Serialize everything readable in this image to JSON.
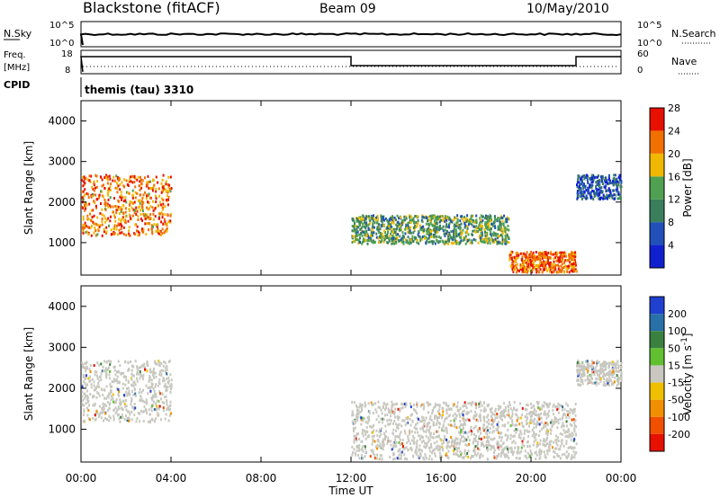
{
  "header": {
    "title": "Blackstone (fitACF)",
    "beam": "Beam 09",
    "date": "10/May/2010"
  },
  "nsky_panel": {
    "label": "N.Sky",
    "right_label": "N.Search",
    "left_ticks": [
      "10^5",
      "10^0"
    ],
    "right_ticks": [
      "10^5",
      "10^0"
    ]
  },
  "freq_panel": {
    "label_line1": "Freq.",
    "label_line2": "[MHz]",
    "left_ticks": [
      "18",
      "8"
    ],
    "right_ticks": [
      "60",
      "0"
    ],
    "right_label": "Nave"
  },
  "cpid_panel": {
    "label": "CPID",
    "value": "themis (tau) 3310"
  },
  "x_axis": {
    "label": "Time UT",
    "ticks": [
      "00:00",
      "04:00",
      "08:00",
      "12:00",
      "16:00",
      "20:00",
      "00:00"
    ]
  },
  "colors": {
    "power": [
      "#1020d0",
      "#2050b8",
      "#3a7f5c",
      "#4fa050",
      "#f0b800",
      "#f07000",
      "#e81000"
    ],
    "velocity": [
      "#2040d0",
      "#2870a8",
      "#3a8040",
      "#60c030",
      "#c8c8c0",
      "#f0c000",
      "#f09000",
      "#f05000",
      "#e81000"
    ]
  },
  "chart_data": [
    {
      "type": "heatmap",
      "title": "",
      "ylabel": "Slant Range [km]",
      "xlabel": "",
      "ylim": [
        200,
        4500
      ],
      "xlim": [
        0,
        24
      ],
      "y_ticks": [
        "1000",
        "2000",
        "3000",
        "4000"
      ],
      "colorbar": {
        "label": "Power [dB]",
        "ticks": [
          "4",
          "8",
          "12",
          "16",
          "20",
          "24",
          "28"
        ],
        "range": [
          0,
          32
        ]
      },
      "regions": [
        {
          "t_start": 0.0,
          "t_end": 4.0,
          "range_min": 1200,
          "range_max": 2700,
          "value": 26
        },
        {
          "t_start": 12.0,
          "t_end": 19.0,
          "range_min": 1000,
          "range_max": 1700,
          "value": 14
        },
        {
          "t_start": 19.0,
          "t_end": 22.0,
          "range_min": 300,
          "range_max": 800,
          "value": 28
        },
        {
          "t_start": 22.0,
          "t_end": 24.0,
          "range_min": 2100,
          "range_max": 2700,
          "value": 6
        }
      ]
    },
    {
      "type": "heatmap",
      "title": "",
      "ylabel": "Slant Range [km]",
      "xlabel": "Time UT",
      "ylim": [
        200,
        4500
      ],
      "xlim": [
        0,
        24
      ],
      "y_ticks": [
        "1000",
        "2000",
        "3000",
        "4000"
      ],
      "colorbar": {
        "label": "Velocity [m s^-1]",
        "ticks": [
          "200",
          "100",
          "50",
          "15",
          "-15",
          "-50",
          "-100",
          "-200"
        ],
        "range": [
          -250,
          250
        ]
      },
      "regions": [
        {
          "t_start": 0.0,
          "t_end": 4.0,
          "range_min": 1200,
          "range_max": 2700,
          "value": 0
        },
        {
          "t_start": 12.0,
          "t_end": 22.0,
          "range_min": 300,
          "range_max": 1700,
          "value": 0
        },
        {
          "t_start": 22.0,
          "t_end": 24.0,
          "range_min": 2100,
          "range_max": 2700,
          "value": 0
        }
      ]
    }
  ]
}
